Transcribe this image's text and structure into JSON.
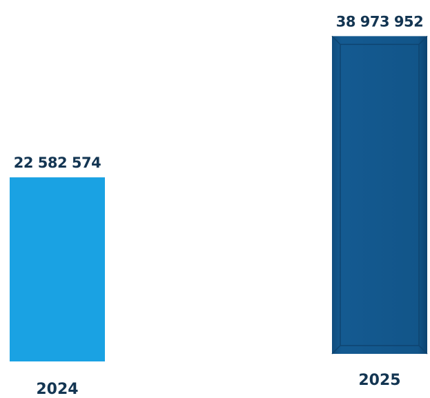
{
  "chart_data": {
    "type": "bar",
    "categories": [
      "2024",
      "2025"
    ],
    "values": [
      22582574,
      38973952
    ],
    "data_labels": [
      "22 582 574",
      "38 973 952"
    ],
    "title": "",
    "xlabel": "",
    "ylabel": "",
    "ylim": [
      0,
      44000000
    ],
    "grid": false,
    "legend": "none",
    "colors": {
      "bars": [
        "#1aa2e3",
        "#125589"
      ],
      "bar_edge_dark": "#0e4470",
      "label_text": "#133552"
    }
  }
}
